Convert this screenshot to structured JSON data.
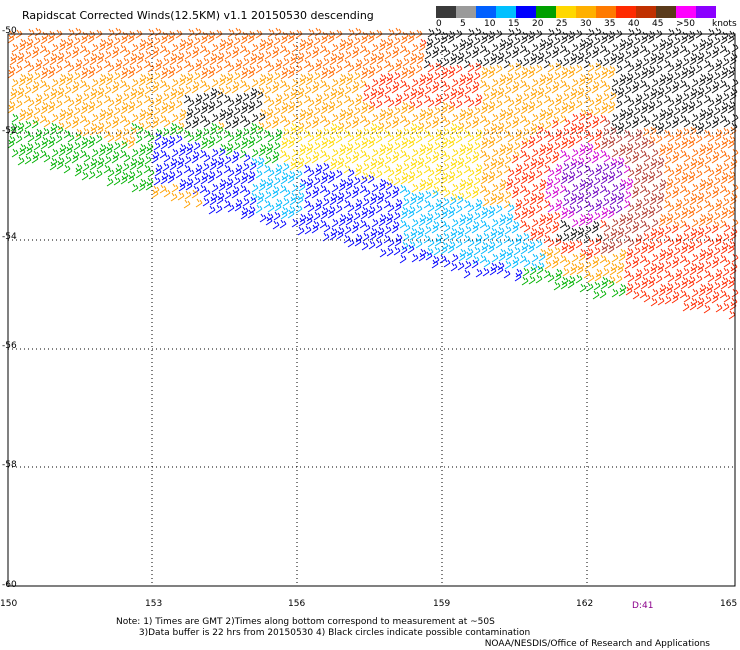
{
  "title": "Rapidscat Corrected Winds(12.5KM) v1.1 20150530 descending",
  "legend": {
    "units": "knots",
    "ticks": [
      "0",
      "5",
      "10",
      "15",
      "20",
      "25",
      "30",
      "35",
      "40",
      "45",
      ">50"
    ],
    "colors": [
      "#3a3a3a",
      "#9a9a9a",
      "#0060ff",
      "#00c0ff",
      "#0000ff",
      "#00a000",
      "#ffd800",
      "#ffb000",
      "#ff7a00",
      "#ff2a00",
      "#c03000",
      "#5a3a1a",
      "#ff00ff",
      "#8b00ff"
    ]
  },
  "map": {
    "lon_ticks": [
      "150",
      "153",
      "156",
      "159",
      "162",
      "165"
    ],
    "lat_ticks": [
      "-50",
      "-52",
      "-54",
      "-56",
      "-58",
      "-60"
    ],
    "pass_label": "D:41"
  },
  "notes": {
    "line1": "Note: 1) Times are GMT 2)Times along bottom correspond to measurement at ~50S",
    "line2": "3)Data buffer is 22 hrs from 20150530 4) Black circles indicate possible contamination",
    "credit": "NOAA/NESDIS/Office of Research and Applications"
  }
}
